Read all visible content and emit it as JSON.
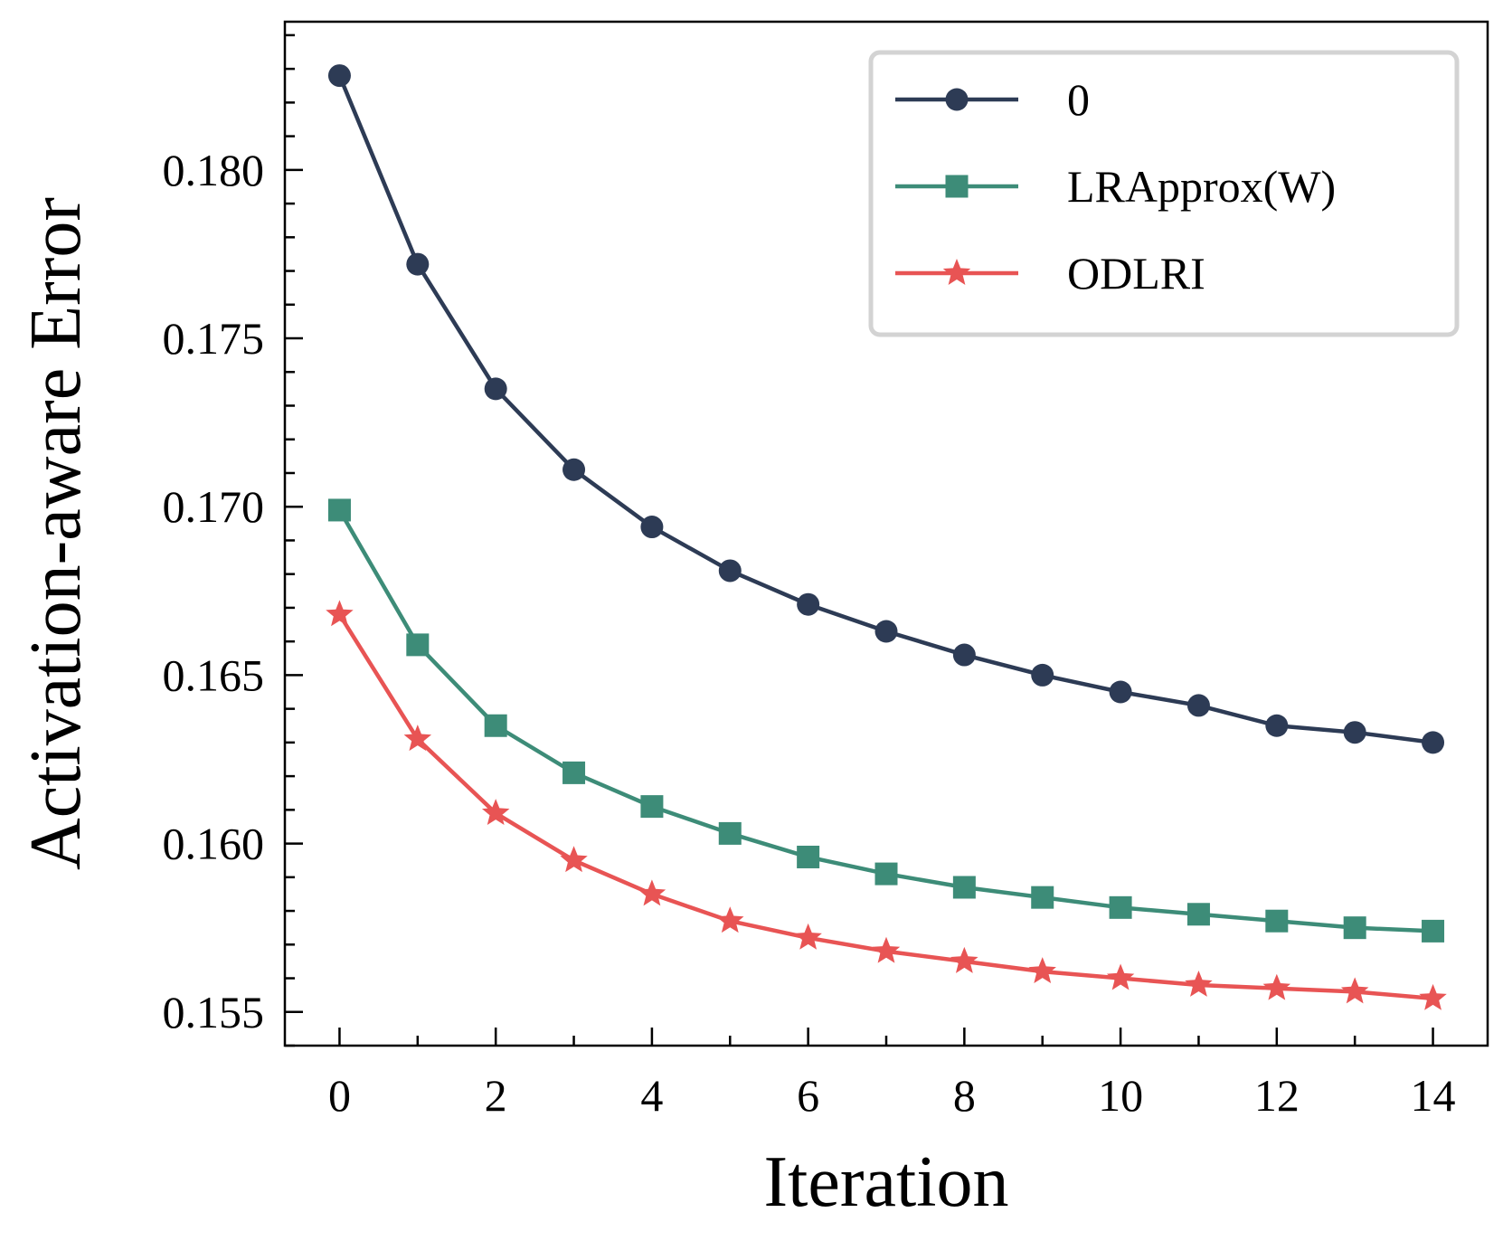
{
  "chart_data": {
    "type": "line",
    "title": "",
    "xlabel": "Iteration",
    "ylabel": "Activation-aware Error",
    "x": [
      0,
      1,
      2,
      3,
      4,
      5,
      6,
      7,
      8,
      9,
      10,
      11,
      12,
      13,
      14
    ],
    "xlim": [
      -0.7,
      14.7
    ],
    "ylim": [
      0.154,
      0.1844
    ],
    "xticks": [
      0,
      2,
      4,
      6,
      8,
      10,
      12,
      14
    ],
    "xtick_labels": [
      "0",
      "2",
      "4",
      "6",
      "8",
      "10",
      "12",
      "14"
    ],
    "yticks": [
      0.155,
      0.16,
      0.165,
      0.17,
      0.175,
      0.18
    ],
    "ytick_labels": [
      "0.155",
      "0.160",
      "0.165",
      "0.170",
      "0.175",
      "0.180"
    ],
    "grid": false,
    "legend_position": "upper right",
    "series": [
      {
        "name": "0",
        "color": "#2d3b55",
        "marker": "circle",
        "values": [
          0.1828,
          0.1772,
          0.1735,
          0.1711,
          0.1694,
          0.1681,
          0.1671,
          0.1663,
          0.1656,
          0.165,
          0.1645,
          0.1641,
          0.1635,
          0.1633,
          0.163
        ]
      },
      {
        "name": "LRApprox(W)",
        "color": "#3d8c78",
        "marker": "square",
        "values": [
          0.1699,
          0.1659,
          0.1635,
          0.1621,
          0.1611,
          0.1603,
          0.1596,
          0.1591,
          0.1587,
          0.1584,
          0.1581,
          0.1579,
          0.1577,
          0.1575,
          0.1574
        ]
      },
      {
        "name": "ODLRI",
        "color": "#e85454",
        "marker": "star",
        "values": [
          0.1668,
          0.1631,
          0.1609,
          0.1595,
          0.1585,
          0.1577,
          0.1572,
          0.1568,
          0.1565,
          0.1562,
          0.156,
          0.1558,
          0.1557,
          0.1556,
          0.1554
        ]
      }
    ]
  }
}
